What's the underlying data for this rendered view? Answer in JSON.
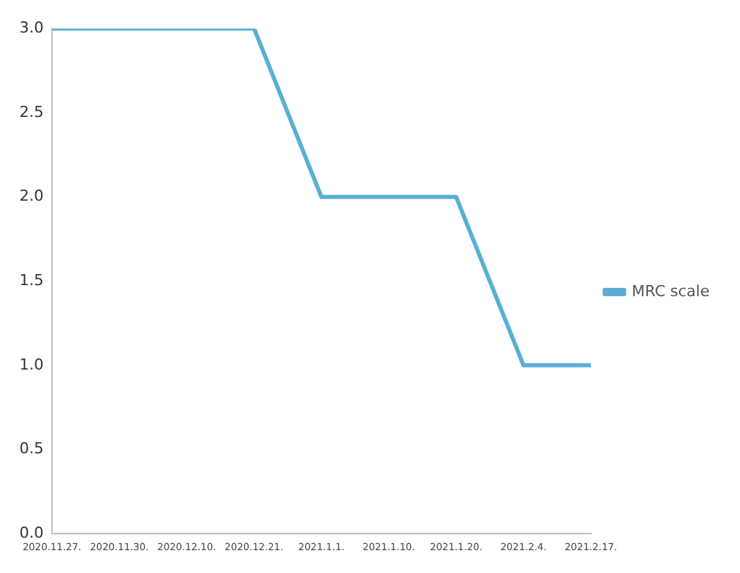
{
  "chart_data": {
    "type": "line",
    "categories": [
      "2020.11.27.",
      "2020.11.30.",
      "2020.12.10.",
      "2020.12.21.",
      "2021.1.1.",
      "2021.1.10.",
      "2021.1.20.",
      "2021.2.4.",
      "2021.2.17."
    ],
    "series": [
      {
        "name": "MRC scale",
        "color": "#5aaed6",
        "values": [
          3,
          3,
          3,
          3,
          2,
          2,
          2,
          1,
          1
        ]
      }
    ],
    "ylim": [
      0,
      3
    ],
    "yticks": [
      {
        "value": 0,
        "label": "0.0"
      },
      0.5,
      {
        "value": 1,
        "label": "1.0"
      },
      1.5,
      {
        "value": 2,
        "label": "2.0"
      },
      2.5,
      {
        "value": 3,
        "label": "3.0"
      }
    ],
    "grid": false,
    "legend": "right",
    "marker": "none",
    "line_style": "solid"
  }
}
